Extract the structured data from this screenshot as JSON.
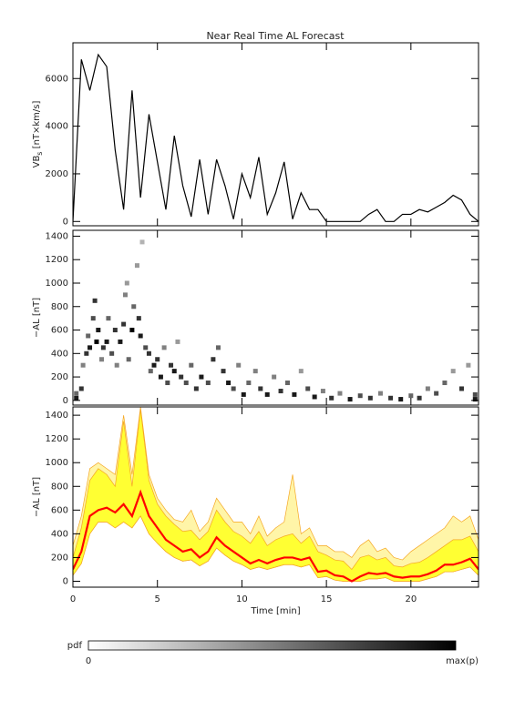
{
  "chart_data": [
    {
      "type": "line",
      "title": "Near Real Time AL Forecast",
      "ylabel": "VB",
      "ylabel_sub": "s",
      "ylabel_unit": " [nT×km/s]",
      "color": "#000000",
      "x": [
        0,
        0.5,
        1,
        1.5,
        2,
        2.5,
        3,
        3.5,
        4,
        4.5,
        5,
        5.5,
        6,
        6.5,
        7,
        7.5,
        8,
        8.5,
        9,
        9.5,
        10,
        10.5,
        11,
        11.5,
        12,
        12.5,
        13,
        13.5,
        14,
        14.5,
        15,
        15.5,
        16,
        16.5,
        17,
        17.5,
        18,
        18.5,
        19,
        19.5,
        20,
        20.5,
        21,
        21.5,
        22,
        22.5,
        23,
        23.5,
        24
      ],
      "values": [
        0,
        6800,
        5500,
        7000,
        6500,
        3000,
        500,
        5500,
        1000,
        4500,
        2500,
        500,
        3600,
        1500,
        200,
        2600,
        300,
        2600,
        1500,
        100,
        2000,
        1000,
        2700,
        300,
        1200,
        2500,
        100,
        1200,
        500,
        500,
        0,
        0,
        0,
        0,
        0,
        300,
        500,
        0,
        0,
        300,
        300,
        500,
        400,
        600,
        800,
        1100,
        900,
        300,
        0
      ],
      "xlim": [
        0,
        24
      ],
      "xticks": [
        0,
        5,
        10,
        15,
        20
      ],
      "ylim": [
        -180,
        7500
      ],
      "yticks": [
        0,
        2000,
        4000,
        6000
      ]
    },
    {
      "type": "heatmap",
      "ylabel": "−AL [nT]",
      "cells": [
        [
          0.2,
          20,
          0.9
        ],
        [
          0.2,
          60,
          0.6
        ],
        [
          0.5,
          100,
          0.8
        ],
        [
          0.6,
          300,
          0.5
        ],
        [
          0.8,
          400,
          0.8
        ],
        [
          0.9,
          550,
          0.6
        ],
        [
          1.0,
          450,
          0.9
        ],
        [
          1.2,
          700,
          0.7
        ],
        [
          1.3,
          850,
          0.8
        ],
        [
          1.4,
          500,
          1.0
        ],
        [
          1.5,
          600,
          0.9
        ],
        [
          1.7,
          350,
          0.5
        ],
        [
          1.8,
          450,
          0.8
        ],
        [
          2.0,
          500,
          0.9
        ],
        [
          2.1,
          700,
          0.6
        ],
        [
          2.3,
          400,
          0.7
        ],
        [
          2.5,
          600,
          0.8
        ],
        [
          2.6,
          300,
          0.5
        ],
        [
          2.8,
          500,
          0.9
        ],
        [
          3.0,
          650,
          0.8
        ],
        [
          3.1,
          900,
          0.5
        ],
        [
          3.2,
          1000,
          0.4
        ],
        [
          3.3,
          350,
          0.6
        ],
        [
          3.5,
          600,
          1.0
        ],
        [
          3.6,
          800,
          0.6
        ],
        [
          3.8,
          1150,
          0.4
        ],
        [
          3.9,
          700,
          0.8
        ],
        [
          4.0,
          550,
          0.9
        ],
        [
          4.1,
          1350,
          0.3
        ],
        [
          4.3,
          450,
          0.7
        ],
        [
          4.5,
          400,
          0.8
        ],
        [
          4.6,
          250,
          0.6
        ],
        [
          4.8,
          300,
          0.9
        ],
        [
          5.0,
          350,
          0.8
        ],
        [
          5.2,
          200,
          0.9
        ],
        [
          5.4,
          450,
          0.5
        ],
        [
          5.6,
          150,
          0.7
        ],
        [
          5.8,
          300,
          0.8
        ],
        [
          6.0,
          250,
          0.9
        ],
        [
          6.2,
          500,
          0.4
        ],
        [
          6.4,
          200,
          0.8
        ],
        [
          6.7,
          150,
          0.7
        ],
        [
          7.0,
          300,
          0.6
        ],
        [
          7.3,
          100,
          0.8
        ],
        [
          7.6,
          200,
          0.9
        ],
        [
          8.0,
          150,
          0.7
        ],
        [
          8.3,
          350,
          0.8
        ],
        [
          8.6,
          450,
          0.6
        ],
        [
          8.9,
          250,
          0.8
        ],
        [
          9.2,
          150,
          0.9
        ],
        [
          9.5,
          100,
          0.7
        ],
        [
          9.8,
          300,
          0.5
        ],
        [
          10.1,
          50,
          0.9
        ],
        [
          10.4,
          150,
          0.6
        ],
        [
          10.8,
          250,
          0.5
        ],
        [
          11.1,
          100,
          0.8
        ],
        [
          11.5,
          50,
          0.9
        ],
        [
          11.9,
          200,
          0.5
        ],
        [
          12.3,
          80,
          0.8
        ],
        [
          12.7,
          150,
          0.6
        ],
        [
          13.1,
          50,
          0.9
        ],
        [
          13.5,
          250,
          0.4
        ],
        [
          13.9,
          100,
          0.7
        ],
        [
          14.3,
          30,
          0.9
        ],
        [
          14.8,
          80,
          0.5
        ],
        [
          15.3,
          20,
          0.8
        ],
        [
          15.8,
          60,
          0.5
        ],
        [
          16.4,
          10,
          0.9
        ],
        [
          17.0,
          40,
          0.7
        ],
        [
          17.6,
          20,
          0.8
        ],
        [
          18.2,
          60,
          0.5
        ],
        [
          18.8,
          20,
          0.8
        ],
        [
          19.4,
          10,
          0.9
        ],
        [
          20.0,
          40,
          0.6
        ],
        [
          20.5,
          20,
          0.8
        ],
        [
          21.0,
          100,
          0.5
        ],
        [
          21.5,
          60,
          0.7
        ],
        [
          22.0,
          150,
          0.6
        ],
        [
          22.5,
          250,
          0.4
        ],
        [
          23.0,
          100,
          0.8
        ],
        [
          23.4,
          300,
          0.4
        ],
        [
          23.8,
          50,
          0.7
        ],
        [
          23.8,
          10,
          0.9
        ]
      ],
      "ylim": [
        -40,
        1450
      ],
      "yticks": [
        0,
        200,
        400,
        600,
        800,
        1000,
        1200,
        1400
      ]
    },
    {
      "type": "band",
      "ylabel": "−AL [nT]",
      "xlabel": "Time [min]",
      "x": [
        0,
        0.5,
        1,
        1.5,
        2,
        2.5,
        3,
        3.5,
        4,
        4.5,
        5,
        5.5,
        6,
        6.5,
        7,
        7.5,
        8,
        8.5,
        9,
        9.5,
        10,
        10.5,
        11,
        11.5,
        12,
        12.5,
        13,
        13.5,
        14,
        14.5,
        15,
        15.5,
        16,
        16.5,
        17,
        17.5,
        18,
        18.5,
        19,
        19.5,
        20,
        20.5,
        21,
        21.5,
        22,
        22.5,
        23,
        23.5,
        24
      ],
      "outer_upper": [
        300,
        550,
        950,
        1000,
        950,
        900,
        1400,
        900,
        1470,
        900,
        700,
        600,
        520,
        500,
        600,
        420,
        500,
        700,
        600,
        500,
        500,
        400,
        550,
        380,
        450,
        500,
        900,
        400,
        450,
        300,
        300,
        250,
        250,
        200,
        300,
        350,
        250,
        280,
        200,
        180,
        250,
        300,
        350,
        400,
        450,
        550,
        500,
        550,
        350
      ],
      "upper": [
        200,
        450,
        850,
        950,
        900,
        800,
        1350,
        800,
        1450,
        850,
        650,
        550,
        480,
        420,
        430,
        350,
        420,
        600,
        500,
        420,
        380,
        320,
        420,
        300,
        350,
        380,
        400,
        320,
        380,
        250,
        220,
        180,
        170,
        100,
        200,
        220,
        180,
        200,
        130,
        120,
        150,
        160,
        200,
        250,
        300,
        350,
        350,
        380,
        250
      ],
      "lower": [
        50,
        150,
        400,
        500,
        500,
        450,
        500,
        450,
        550,
        400,
        320,
        250,
        200,
        170,
        180,
        130,
        170,
        280,
        220,
        170,
        140,
        100,
        120,
        100,
        120,
        140,
        140,
        120,
        140,
        30,
        40,
        10,
        0,
        0,
        0,
        20,
        20,
        30,
        0,
        0,
        0,
        0,
        20,
        40,
        80,
        80,
        100,
        120,
        50
      ],
      "median": [
        100,
        250,
        550,
        600,
        620,
        580,
        650,
        550,
        750,
        550,
        450,
        350,
        300,
        250,
        270,
        200,
        250,
        370,
        300,
        250,
        200,
        150,
        180,
        150,
        180,
        200,
        200,
        180,
        200,
        80,
        90,
        50,
        40,
        0,
        40,
        70,
        60,
        70,
        40,
        30,
        40,
        40,
        60,
        90,
        140,
        140,
        160,
        190,
        100
      ],
      "outer_color": "#fff5a8",
      "band_color": "#ffff33",
      "edge_color": "#f5a623",
      "median_color": "#ff0000",
      "xlim": [
        0,
        24
      ],
      "xticks": [
        0,
        5,
        10,
        15,
        20
      ],
      "ylim": [
        -50,
        1470
      ],
      "yticks": [
        0,
        200,
        400,
        600,
        800,
        1000,
        1200,
        1400
      ]
    }
  ],
  "colorbar": {
    "label": "pdf",
    "min_label": "0",
    "max_label": "max(p)"
  }
}
